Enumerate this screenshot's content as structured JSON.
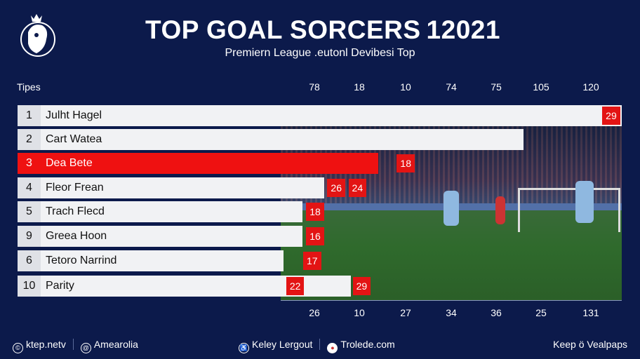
{
  "header": {
    "title_part1": "TOP G",
    "title_ball": "O",
    "title_part2": "AL SORCERS",
    "title_year": "12021",
    "subtitle": "Premiern League .eutonl Devibesi Top",
    "logo_text": "Premier League lion crest"
  },
  "chart_data": {
    "type": "bar",
    "orientation": "horizontal",
    "title": "TOP GOAL SORCERS 12021",
    "ylabel": "Tipes",
    "top_ticks": [
      "78",
      "18",
      "10",
      "74",
      "75",
      "105",
      "120"
    ],
    "bottom_ticks": [
      "26",
      "10",
      "27",
      "34",
      "36",
      "25",
      "131"
    ],
    "rows": [
      {
        "rank": "1",
        "name": "Julht Hagel",
        "fill": 1.0,
        "labels": [
          {
            "text": "29",
            "at": 0.97
          }
        ],
        "highlight": false
      },
      {
        "rank": "2",
        "name": "Cart Watea",
        "fill": 0.837,
        "labels": [],
        "highlight": false
      },
      {
        "rank": "3",
        "name": "Dea Bete",
        "fill": 0.597,
        "labels": [
          {
            "text": "18",
            "at": 0.63
          }
        ],
        "highlight": true
      },
      {
        "rank": "4",
        "name": "Fleor Frean",
        "fill": 0.508,
        "labels": [
          {
            "text": "26",
            "at": 0.515
          },
          {
            "text": "24",
            "at": 0.55
          }
        ],
        "highlight": false
      },
      {
        "rank": "5",
        "name": "Trach Flecd",
        "fill": 0.472,
        "labels": [
          {
            "text": "18",
            "at": 0.48
          }
        ],
        "highlight": false
      },
      {
        "rank": "9",
        "name": "Greea Hoon",
        "fill": 0.472,
        "labels": [
          {
            "text": "16",
            "at": 0.48
          }
        ],
        "highlight": false
      },
      {
        "rank": "6",
        "name": "Tetoro Narrind",
        "fill": 0.44,
        "labels": [
          {
            "text": "17",
            "at": 0.475
          }
        ],
        "highlight": false
      },
      {
        "rank": "10",
        "name": "Parity",
        "fill": 0.552,
        "labels": [
          {
            "text": "22",
            "at": 0.447
          },
          {
            "text": "29",
            "at": 0.557
          }
        ],
        "highlight": false
      }
    ]
  },
  "footer": {
    "left1": "ktep.netv",
    "left2": "Amearolia",
    "mid1": "Keley Lergout",
    "mid2": "Trolede.com",
    "right": "Keep ö Vealpaps"
  },
  "colors": {
    "background": "#0c1a4b",
    "accent": "#ef1111",
    "bar": "#f1f2f4"
  }
}
